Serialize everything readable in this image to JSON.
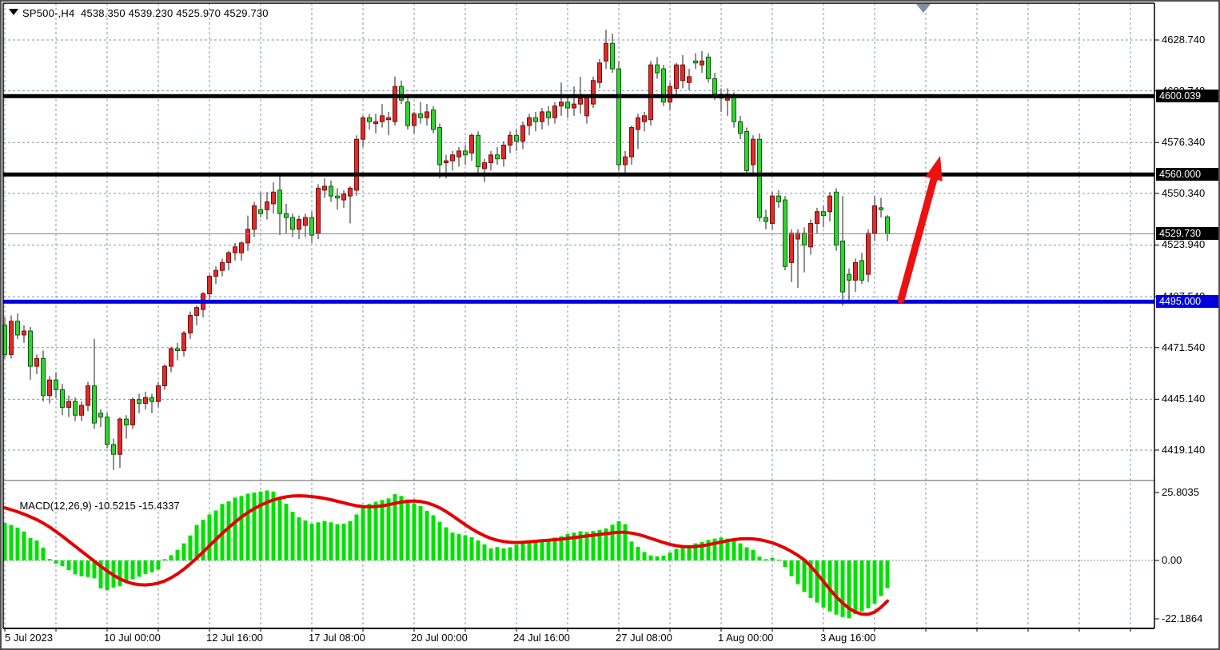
{
  "header": {
    "symbol_ohlc_title": "SP500-,H4  4538.350 4539.230 4525.970 4529.730",
    "symbol_toggle_icon": "triangle-down",
    "shift_marker_icon": "triangle-down-gray"
  },
  "macd_panel": {
    "name": "MACD(12,26,9)",
    "main_value": "-10.5215",
    "signal_value": "-15.4337",
    "axis_ticks": [
      {
        "label": "25.8035",
        "value": 25.8035
      },
      {
        "label": "0.00",
        "value": 0.0
      },
      {
        "label": "-22.1864",
        "value": -22.1864
      }
    ]
  },
  "price_axis": {
    "ticks": [
      {
        "label": "4628.740",
        "price": 4628.74
      },
      {
        "label": "4602.740",
        "price": 4602.74
      },
      {
        "label": "4576.340",
        "price": 4576.34
      },
      {
        "label": "4550.340",
        "price": 4550.34
      },
      {
        "label": "4523.940",
        "price": 4523.94
      },
      {
        "label": "4497.540",
        "price": 4497.54
      },
      {
        "label": "4471.540",
        "price": 4471.54
      },
      {
        "label": "4445.140",
        "price": 4445.14
      },
      {
        "label": "4419.140",
        "price": 4419.14
      }
    ],
    "boxed_labels": [
      {
        "label": "4600.039",
        "price": 4600.039,
        "bg": "#000000"
      },
      {
        "label": "4560.000",
        "price": 4560.0,
        "bg": "#000000"
      },
      {
        "label": "4529.730",
        "price": 4529.73,
        "bg": "#000000"
      },
      {
        "label": "4495.000",
        "price": 4495.0,
        "bg": "#0000dd"
      }
    ]
  },
  "time_axis": {
    "labels": [
      "5 Jul 2023",
      "10 Jul 00:00",
      "12 Jul 16:00",
      "17 Jul 08:00",
      "20 Jul 00:00",
      "24 Jul 16:00",
      "27 Jul 08:00",
      "1 Aug 00:00",
      "3 Aug 16:00"
    ]
  },
  "levels": {
    "resistance_1": 4600.039,
    "resistance_2": 4560.0,
    "support_blue": 4495.0,
    "current_price": 4529.73
  },
  "colors": {
    "bull_fill": "#dd2c2c",
    "bull_border": "#7c0b0b",
    "bear_fill": "#33d133",
    "bear_border": "#0b5e0b",
    "wick": "#1c1c1c",
    "grid": "#8596a6",
    "macd_hist": "#00e000",
    "macd_signal": "#e40000",
    "hline_black": "#000000",
    "hline_blue": "#0000dd",
    "current_price_line": "#808080",
    "arrow": "#ec1212",
    "panel_bg": "#ffffff"
  },
  "chart_data": {
    "type": "candlestick",
    "title": "SP500-,H4",
    "timeframe": "H4",
    "price_range_visible": [
      4404,
      4638
    ],
    "x_axis_labels": [
      "5 Jul 2023",
      "10 Jul 00:00",
      "12 Jul 16:00",
      "17 Jul 08:00",
      "20 Jul 00:00",
      "24 Jul 16:00",
      "27 Jul 08:00",
      "1 Aug 00:00",
      "3 Aug 16:00"
    ],
    "ohlc": [
      [
        4483,
        4487,
        4466,
        4468
      ],
      [
        4468,
        4488,
        4466,
        4485
      ],
      [
        4485,
        4489,
        4476,
        4478
      ],
      [
        4478,
        4483,
        4474,
        4480
      ],
      [
        4480,
        4482,
        4455,
        4462
      ],
      [
        4462,
        4468,
        4458,
        4466
      ],
      [
        4466,
        4470,
        4444,
        4447
      ],
      [
        4447,
        4457,
        4443,
        4455
      ],
      [
        4455,
        4459,
        4446,
        4450
      ],
      [
        4450,
        4453,
        4437,
        4441
      ],
      [
        4441,
        4447,
        4436,
        4444
      ],
      [
        4444,
        4446,
        4434,
        4437
      ],
      [
        4437,
        4444,
        4434,
        4442
      ],
      [
        4442,
        4454,
        4439,
        4452
      ],
      [
        4452,
        4476,
        4430,
        4433
      ],
      [
        4438,
        4440,
        4431,
        4436
      ],
      [
        4436,
        4438,
        4420,
        4422
      ],
      [
        4422,
        4425,
        4409,
        4417
      ],
      [
        4417,
        4436,
        4410,
        4435
      ],
      [
        4435,
        4437,
        4425,
        4432
      ],
      [
        4432,
        4446,
        4430,
        4445
      ],
      [
        4445,
        4448,
        4438,
        4443
      ],
      [
        4443,
        4449,
        4440,
        4446
      ],
      [
        4446,
        4448,
        4438,
        4444
      ],
      [
        4444,
        4454,
        4441,
        4452
      ],
      [
        4452,
        4463,
        4450,
        4462
      ],
      [
        4462,
        4472,
        4459,
        4471
      ],
      [
        4471,
        4474,
        4465,
        4470
      ],
      [
        4470,
        4480,
        4467,
        4479
      ],
      [
        4479,
        4490,
        4476,
        4488
      ],
      [
        4488,
        4493,
        4483,
        4492
      ],
      [
        4491,
        4500,
        4487,
        4499
      ],
      [
        4499,
        4509,
        4496,
        4508
      ],
      [
        4508,
        4513,
        4504,
        4511
      ],
      [
        4511,
        4517,
        4508,
        4515
      ],
      [
        4515,
        4521,
        4511,
        4520
      ],
      [
        4520,
        4525,
        4516,
        4523
      ],
      [
        4520,
        4526,
        4516,
        4525
      ],
      [
        4525,
        4539,
        4521,
        4532
      ],
      [
        4532,
        4546,
        4528,
        4544
      ],
      [
        4542,
        4551,
        4538,
        4540
      ],
      [
        4542,
        4551,
        4537,
        4546
      ],
      [
        4545,
        4556,
        4540,
        4551
      ],
      [
        4552,
        4561,
        4529,
        4540
      ],
      [
        4540,
        4545,
        4530,
        4538
      ],
      [
        4538,
        4540,
        4528,
        4532
      ],
      [
        4532,
        4539,
        4527,
        4537
      ],
      [
        4534,
        4540,
        4528,
        4538
      ],
      [
        4538,
        4541,
        4525,
        4529
      ],
      [
        4530,
        4555,
        4527,
        4553
      ],
      [
        4552,
        4558,
        4548,
        4554
      ],
      [
        4554,
        4557,
        4546,
        4549
      ],
      [
        4549,
        4553,
        4542,
        4548
      ],
      [
        4547,
        4552,
        4543,
        4550
      ],
      [
        4549,
        4554,
        4535,
        4553
      ],
      [
        4552,
        4580,
        4549,
        4578
      ],
      [
        4578,
        4590,
        4574,
        4589
      ],
      [
        4589,
        4591,
        4583,
        4587
      ],
      [
        4586,
        4591,
        4581,
        4587
      ],
      [
        4587,
        4596,
        4584,
        4590
      ],
      [
        4588,
        4592,
        4580,
        4589
      ],
      [
        4587,
        4610,
        4585,
        4605
      ],
      [
        4605,
        4608,
        4596,
        4598
      ],
      [
        4597,
        4600,
        4583,
        4585
      ],
      [
        4585,
        4592,
        4581,
        4591
      ],
      [
        4591,
        4597,
        4586,
        4589
      ],
      [
        4589,
        4596,
        4585,
        4592
      ],
      [
        4593,
        4595,
        4581,
        4583
      ],
      [
        4584,
        4586,
        4558,
        4565
      ],
      [
        4566,
        4570,
        4558,
        4567
      ],
      [
        4567,
        4572,
        4562,
        4570
      ],
      [
        4569,
        4574,
        4564,
        4572
      ],
      [
        4572,
        4575,
        4565,
        4570
      ],
      [
        4571,
        4581,
        4567,
        4580
      ],
      [
        4580,
        4582,
        4560,
        4564
      ],
      [
        4563,
        4568,
        4556,
        4566
      ],
      [
        4566,
        4572,
        4562,
        4570
      ],
      [
        4570,
        4574,
        4565,
        4568
      ],
      [
        4568,
        4577,
        4564,
        4575
      ],
      [
        4575,
        4582,
        4571,
        4580
      ],
      [
        4580,
        4583,
        4572,
        4577
      ],
      [
        4577,
        4587,
        4573,
        4585
      ],
      [
        4585,
        4591,
        4580,
        4589
      ],
      [
        4589,
        4592,
        4582,
        4587
      ],
      [
        4587,
        4594,
        4583,
        4592
      ],
      [
        4592,
        4595,
        4585,
        4589
      ],
      [
        4589,
        4597,
        4586,
        4595
      ],
      [
        4595,
        4607,
        4590,
        4597
      ],
      [
        4597,
        4600,
        4589,
        4594
      ],
      [
        4594,
        4605,
        4590,
        4596
      ],
      [
        4596,
        4610,
        4591,
        4599
      ],
      [
        4590,
        4601,
        4586,
        4600
      ],
      [
        4596,
        4610,
        4594,
        4608
      ],
      [
        4607,
        4619,
        4604,
        4617
      ],
      [
        4618,
        4634,
        4614,
        4627
      ],
      [
        4627,
        4632,
        4612,
        4614
      ],
      [
        4614,
        4618,
        4562,
        4565
      ],
      [
        4565,
        4572,
        4560,
        4569
      ],
      [
        4569,
        4585,
        4565,
        4584
      ],
      [
        4583,
        4591,
        4573,
        4589
      ],
      [
        4587,
        4592,
        4582,
        4590
      ],
      [
        4588,
        4618,
        4585,
        4616
      ],
      [
        4616,
        4620,
        4609,
        4612
      ],
      [
        4614,
        4616,
        4595,
        4597
      ],
      [
        4597,
        4607,
        4593,
        4605
      ],
      [
        4604,
        4617,
        4600,
        4616
      ],
      [
        4608,
        4621,
        4604,
        4616
      ],
      [
        4607,
        4614,
        4603,
        4610
      ],
      [
        4618,
        4622,
        4614,
        4617
      ],
      [
        4616,
        4623,
        4612,
        4618
      ],
      [
        4620,
        4622,
        4607,
        4609
      ],
      [
        4609,
        4612,
        4598,
        4601
      ],
      [
        4601,
        4604,
        4592,
        4599
      ],
      [
        4598,
        4604,
        4590,
        4601
      ],
      [
        4600,
        4602,
        4584,
        4587
      ],
      [
        4587,
        4590,
        4578,
        4581
      ],
      [
        4582,
        4584,
        4560,
        4562
      ],
      [
        4565,
        4580,
        4561,
        4578
      ],
      [
        4578,
        4581,
        4536,
        4538
      ],
      [
        4538,
        4542,
        4532,
        4536
      ],
      [
        4535,
        4551,
        4532,
        4549
      ],
      [
        4549,
        4552,
        4543,
        4546
      ],
      [
        4547,
        4549,
        4511,
        4513
      ],
      [
        4515,
        4532,
        4505,
        4530
      ],
      [
        4527,
        4532,
        4502,
        4530
      ],
      [
        4530,
        4533,
        4510,
        4524
      ],
      [
        4523,
        4537,
        4519,
        4535
      ],
      [
        4535,
        4543,
        4530,
        4541
      ],
      [
        4541,
        4544,
        4533,
        4539
      ],
      [
        4541,
        4551,
        4536,
        4549
      ],
      [
        4551,
        4553,
        4521,
        4524
      ],
      [
        4526,
        4549,
        4493,
        4500
      ],
      [
        4509,
        4512,
        4496,
        4506
      ],
      [
        4506,
        4517,
        4500,
        4515
      ],
      [
        4516,
        4520,
        4504,
        4506
      ],
      [
        4509,
        4532,
        4505,
        4530
      ],
      [
        4530,
        4549,
        4526,
        4544
      ],
      [
        4543,
        4548,
        4538,
        4542
      ],
      [
        4538.35,
        4539.23,
        4525.97,
        4529.73
      ]
    ],
    "macd": {
      "type": "bar+line",
      "histogram": [
        14.3,
        13.5,
        12.5,
        11.0,
        8.5,
        7.6,
        4.9,
        0.6,
        -1.2,
        -2.2,
        -3.7,
        -5.3,
        -6.0,
        -6.3,
        -6.8,
        -10.6,
        -11.3,
        -10.3,
        -9.8,
        -8.3,
        -7.2,
        -6.2,
        -5.2,
        -4.5,
        -3.5,
        0.5,
        2.0,
        4.0,
        6.5,
        9.5,
        13.5,
        15.5,
        17.5,
        19.0,
        21.5,
        22.5,
        23.9,
        24.5,
        25.4,
        25.8,
        26.2,
        26.6,
        26.2,
        24.2,
        21.6,
        18.5,
        16.4,
        15.2,
        14.0,
        14.5,
        15.0,
        14.5,
        13.8,
        14.0,
        15.0,
        17.5,
        20.0,
        21.5,
        22.3,
        23.0,
        23.6,
        25.2,
        24.5,
        23.2,
        21.7,
        20.7,
        18.9,
        17.2,
        14.7,
        12.6,
        10.6,
        10.0,
        9.6,
        8.8,
        7.6,
        6.1,
        4.6,
        5.1,
        4.6,
        5.0,
        6.0,
        6.6,
        7.1,
        7.0,
        7.4,
        8.2,
        8.7,
        9.2,
        10.1,
        10.6,
        11.1,
        10.8,
        11.2,
        11.6,
        12.2,
        13.6,
        14.9,
        13.8,
        7.2,
        5.2,
        3.2,
        1.9,
        1.6,
        1.8,
        3.0,
        4.4,
        5.2,
        5.8,
        6.5,
        7.0,
        7.8,
        8.3,
        8.7,
        8.3,
        7.5,
        6.5,
        5.0,
        4.0,
        1.5,
        0.5,
        1.0,
        0.3,
        -2.5,
        -6.0,
        -9.0,
        -12.0,
        -14.3,
        -16.0,
        -17.9,
        -19.4,
        -20.6,
        -21.5,
        -22.0,
        -20.4,
        -19.4,
        -18.2,
        -16.4,
        -13.5,
        -10.52
      ],
      "signal": [
        20.0,
        19.3,
        18.5,
        17.6,
        16.6,
        15.5,
        14.2,
        12.7,
        11.0,
        9.2,
        7.3,
        5.4,
        3.5,
        1.6,
        -0.3,
        -2.2,
        -4.0,
        -5.6,
        -7.0,
        -8.1,
        -8.8,
        -9.2,
        -9.3,
        -9.1,
        -8.6,
        -7.8,
        -6.6,
        -5.1,
        -3.3,
        -1.3,
        0.9,
        3.2,
        5.6,
        8.0,
        10.3,
        12.5,
        14.6,
        16.5,
        18.2,
        19.7,
        21.0,
        22.1,
        23.0,
        23.7,
        24.2,
        24.5,
        24.6,
        24.5,
        24.3,
        24.0,
        23.6,
        23.1,
        22.5,
        21.9,
        21.3,
        20.8,
        20.5,
        20.4,
        20.5,
        20.8,
        21.2,
        21.7,
        22.2,
        22.5,
        22.6,
        22.4,
        21.9,
        21.1,
        20.0,
        18.6,
        17.0,
        15.3,
        13.6,
        12.0,
        10.6,
        9.4,
        8.4,
        7.7,
        7.2,
        6.9,
        6.8,
        6.9,
        7.1,
        7.3,
        7.5,
        7.7,
        7.9,
        8.1,
        8.4,
        8.7,
        9.0,
        9.3,
        9.6,
        9.9,
        10.2,
        10.5,
        10.7,
        10.7,
        10.4,
        9.9,
        9.2,
        8.4,
        7.6,
        6.8,
        6.1,
        5.6,
        5.3,
        5.2,
        5.3,
        5.6,
        6.0,
        6.5,
        7.0,
        7.5,
        7.9,
        8.2,
        8.3,
        8.2,
        7.9,
        7.4,
        6.7,
        5.8,
        4.7,
        3.4,
        1.9,
        0.2,
        -2.2,
        -5.0,
        -8.0,
        -11.0,
        -13.8,
        -16.2,
        -18.2,
        -19.6,
        -20.4,
        -20.5,
        -19.6,
        -17.8,
        -15.43
      ]
    }
  },
  "annotations": {
    "arrow": {
      "description": "red up arrow from support toward 4560",
      "from_price": 4496,
      "to_price": 4563
    }
  }
}
